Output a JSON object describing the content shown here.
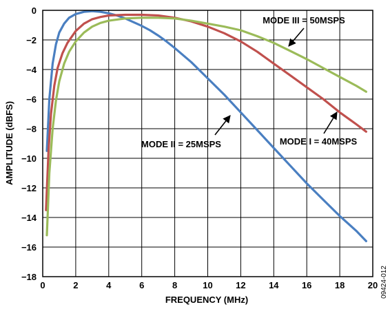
{
  "figure_id": "09424-012",
  "chart_data": {
    "type": "line",
    "xlabel": "FREQUENCY (MHz)",
    "ylabel": "AMPLITUDE (dBFS)",
    "xlim": [
      0,
      20
    ],
    "ylim": [
      -18,
      0
    ],
    "xticks": [
      0,
      2,
      4,
      6,
      8,
      10,
      12,
      14,
      16,
      18,
      20
    ],
    "yticks": [
      0,
      -2,
      -4,
      -6,
      -8,
      -10,
      -12,
      -14,
      -16,
      -18
    ],
    "grid": true,
    "annotations": [
      {
        "text": "MODE III = 50MSPS",
        "series": "mode3"
      },
      {
        "text": "MODE I = 40MSPS",
        "series": "mode1"
      },
      {
        "text": "MODE II = 25MSPS",
        "series": "mode2"
      }
    ],
    "series": [
      {
        "key": "mode2",
        "color": "#4a7fc1",
        "points": [
          [
            0.25,
            -9.5
          ],
          [
            0.4,
            -6.0
          ],
          [
            0.6,
            -3.6
          ],
          [
            0.8,
            -2.3
          ],
          [
            1.0,
            -1.5
          ],
          [
            1.3,
            -0.9
          ],
          [
            1.6,
            -0.5
          ],
          [
            2.0,
            -0.25
          ],
          [
            2.5,
            -0.1
          ],
          [
            3.0,
            -0.05
          ],
          [
            3.5,
            -0.1
          ],
          [
            4.0,
            -0.2
          ],
          [
            4.5,
            -0.35
          ],
          [
            5.0,
            -0.55
          ],
          [
            5.5,
            -0.8
          ],
          [
            6.0,
            -1.05
          ],
          [
            6.5,
            -1.35
          ],
          [
            7.0,
            -1.7
          ],
          [
            7.5,
            -2.1
          ],
          [
            8.0,
            -2.55
          ],
          [
            9.0,
            -3.5
          ],
          [
            10.0,
            -4.6
          ],
          [
            11.0,
            -5.7
          ],
          [
            12.0,
            -6.9
          ],
          [
            13.0,
            -8.1
          ],
          [
            14.0,
            -9.3
          ],
          [
            15.0,
            -10.5
          ],
          [
            16.0,
            -11.7
          ],
          [
            17.0,
            -12.8
          ],
          [
            18.0,
            -13.9
          ],
          [
            19.0,
            -14.9
          ],
          [
            19.6,
            -15.6
          ]
        ]
      },
      {
        "key": "mode1",
        "color": "#c0504d",
        "points": [
          [
            0.2,
            -13.5
          ],
          [
            0.35,
            -9.5
          ],
          [
            0.5,
            -7.0
          ],
          [
            0.7,
            -5.1
          ],
          [
            0.9,
            -3.9
          ],
          [
            1.2,
            -2.9
          ],
          [
            1.5,
            -2.2
          ],
          [
            2.0,
            -1.4
          ],
          [
            2.5,
            -0.9
          ],
          [
            3.0,
            -0.6
          ],
          [
            3.5,
            -0.45
          ],
          [
            4.0,
            -0.35
          ],
          [
            5.0,
            -0.3
          ],
          [
            6.0,
            -0.3
          ],
          [
            7.0,
            -0.35
          ],
          [
            8.0,
            -0.5
          ],
          [
            9.0,
            -0.75
          ],
          [
            10.0,
            -1.1
          ],
          [
            11.0,
            -1.55
          ],
          [
            12.0,
            -2.1
          ],
          [
            13.0,
            -2.8
          ],
          [
            14.0,
            -3.6
          ],
          [
            15.0,
            -4.4
          ],
          [
            16.0,
            -5.2
          ],
          [
            17.0,
            -6.0
          ],
          [
            18.0,
            -6.9
          ],
          [
            19.0,
            -7.7
          ],
          [
            19.6,
            -8.2
          ]
        ]
      },
      {
        "key": "mode3",
        "color": "#9bbb59",
        "points": [
          [
            0.25,
            -15.2
          ],
          [
            0.4,
            -11.0
          ],
          [
            0.6,
            -8.0
          ],
          [
            0.8,
            -6.1
          ],
          [
            1.0,
            -4.8
          ],
          [
            1.3,
            -3.6
          ],
          [
            1.6,
            -2.8
          ],
          [
            2.0,
            -2.1
          ],
          [
            2.5,
            -1.5
          ],
          [
            3.0,
            -1.1
          ],
          [
            3.5,
            -0.85
          ],
          [
            4.0,
            -0.7
          ],
          [
            5.0,
            -0.55
          ],
          [
            6.0,
            -0.5
          ],
          [
            7.0,
            -0.5
          ],
          [
            8.0,
            -0.55
          ],
          [
            9.0,
            -0.7
          ],
          [
            10.0,
            -0.9
          ],
          [
            11.0,
            -1.1
          ],
          [
            12.0,
            -1.35
          ],
          [
            13.0,
            -1.75
          ],
          [
            14.0,
            -2.2
          ],
          [
            15.0,
            -2.75
          ],
          [
            16.0,
            -3.3
          ],
          [
            17.0,
            -3.9
          ],
          [
            18.0,
            -4.5
          ],
          [
            19.0,
            -5.1
          ],
          [
            19.6,
            -5.5
          ]
        ]
      }
    ]
  }
}
